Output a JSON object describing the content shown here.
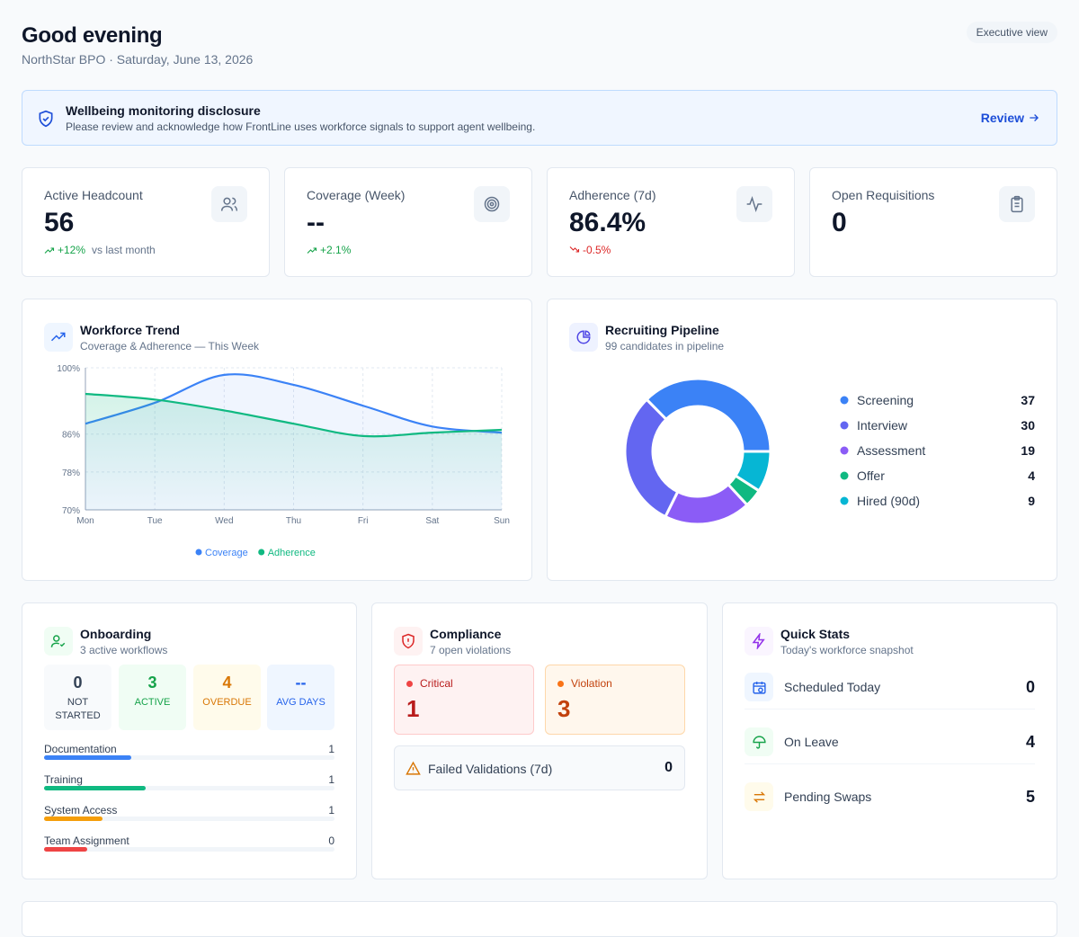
{
  "header": {
    "title": "Good evening",
    "subtitle": "NorthStar BPO · Saturday, June 13, 2026",
    "badge": "Executive view"
  },
  "disclosure": {
    "title": "Wellbeing monitoring disclosure",
    "text": "Please review and acknowledge how FrontLine uses workforce signals to support agent wellbeing.",
    "action": "Review"
  },
  "kpis": [
    {
      "label": "Active Headcount",
      "value": 56,
      "delta": "+12%",
      "delta_note": "vs last month"
    },
    {
      "label": "Coverage (Week)",
      "value": "--",
      "delta": "+2.1%"
    },
    {
      "label": "Adherence (7d)",
      "value": "86.4%",
      "delta": "-0.5%"
    },
    {
      "label": "Open Requisitions",
      "value": 0
    }
  ],
  "chart_data": [
    {
      "type": "line",
      "title": "Workforce Trend",
      "subtitle": "Coverage & Adherence — This Week",
      "categories": [
        "Mon",
        "Tue",
        "Wed",
        "Thu",
        "Fri",
        "Sat",
        "Sun"
      ],
      "series": [
        {
          "name": "Coverage",
          "color": "#3b82f6",
          "values": [
            88.2,
            92.6,
            98.5,
            96.4,
            92,
            87.6,
            86.3
          ]
        },
        {
          "name": "Adherence",
          "color": "#10b981",
          "values": [
            94.5,
            93.3,
            91,
            88.2,
            85.6,
            86.3,
            86.9
          ]
        }
      ],
      "ylim": [
        70,
        100
      ],
      "yticks": [
        {
          "value": 70,
          "label": "70%"
        },
        {
          "value": 78,
          "label": "78%"
        },
        {
          "value": 86,
          "label": "86%"
        },
        {
          "value": 100,
          "label": "100%"
        }
      ],
      "grid": true,
      "legend": "bottom"
    },
    {
      "type": "pie",
      "title": "Recruiting Pipeline",
      "subtitle": "99 candidates in pipeline",
      "categories": [
        "Screening",
        "Interview",
        "Assessment",
        "Offer",
        "Hired (90d)"
      ],
      "values": [
        37,
        30,
        19,
        4,
        9
      ],
      "colors": [
        "#3b82f6",
        "#6366f1",
        "#8b5cf6",
        "#10b981",
        "#06b6d4"
      ],
      "legend": "right"
    }
  ],
  "onboarding": {
    "title": "Onboarding",
    "subtitle": "3 active workflows",
    "stats": [
      {
        "value": 0,
        "label": "NOT STARTED"
      },
      {
        "value": 3,
        "label": "ACTIVE"
      },
      {
        "value": 4,
        "label": "OVERDUE"
      },
      {
        "value": "--",
        "label": "AVG DAYS"
      }
    ],
    "tasks": [
      {
        "label": "Documentation",
        "value": 1
      },
      {
        "label": "Training",
        "value": 1
      },
      {
        "label": "System Access",
        "value": 1
      },
      {
        "label": "Team Assignment",
        "value": 0
      }
    ]
  },
  "compliance": {
    "title": "Compliance",
    "subtitle": "7 open violations",
    "boxes": [
      {
        "label": "Critical",
        "value": 1
      },
      {
        "label": "Violation",
        "value": 3
      }
    ],
    "failed": {
      "label": "Failed Validations (7d)",
      "value": 0
    }
  },
  "quick_stats": {
    "title": "Quick Stats",
    "subtitle": "Today's workforce snapshot",
    "rows": [
      {
        "label": "Scheduled Today",
        "value": 0
      },
      {
        "label": "On Leave",
        "value": 4
      },
      {
        "label": "Pending Swaps",
        "value": 5
      }
    ]
  }
}
